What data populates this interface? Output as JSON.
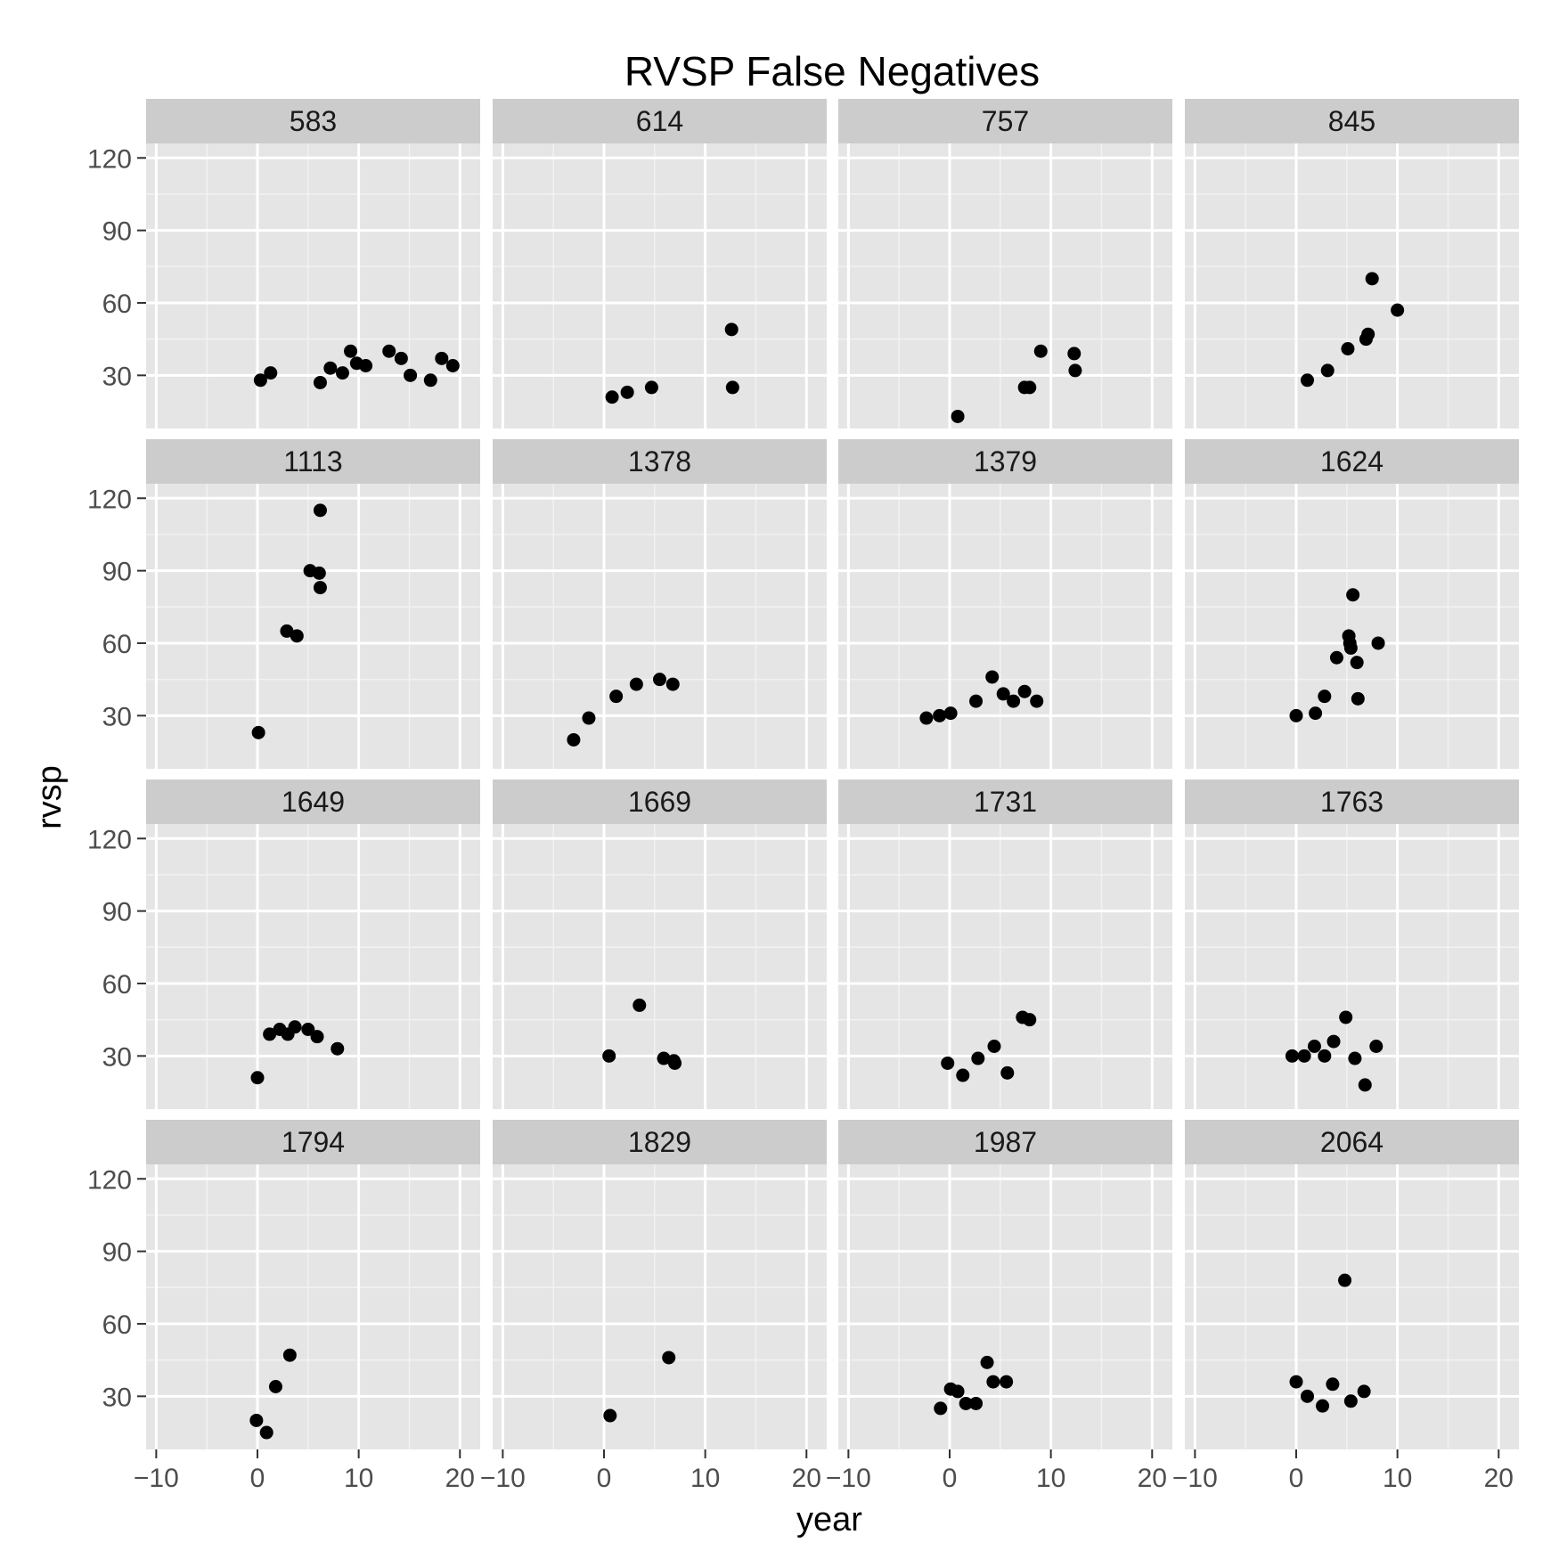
{
  "colors": {
    "panel_bg": "#e5e5e5",
    "strip_bg": "#cccccc",
    "grid_major": "#ffffff",
    "grid_minor": "#f2f2f2",
    "point": "#000000",
    "tick_label": "#4d4d4d",
    "text": "#000000"
  },
  "chart_data": {
    "type": "scatter",
    "title": "RVSP False Negatives",
    "xlabel": "year",
    "ylabel": "rvsp",
    "xlim": [
      -11,
      22
    ],
    "ylim": [
      8,
      126
    ],
    "xticks": [
      -10,
      0,
      10,
      20
    ],
    "xtick_labels": [
      "−10",
      "0",
      "10",
      "20"
    ],
    "yticks": [
      30,
      60,
      90,
      120
    ],
    "ytick_labels": [
      "30",
      "60",
      "90",
      "120"
    ],
    "grid": true,
    "legend": "none",
    "panels": [
      {
        "label": "583",
        "x": [
          0.3,
          1.3,
          6.2,
          7.2,
          8.4,
          9.2,
          9.8,
          10.7,
          13.0,
          14.2,
          15.1,
          17.1,
          18.2,
          19.3
        ],
        "y": [
          28,
          31,
          27,
          33,
          31,
          40,
          35,
          34,
          40,
          37,
          30,
          28,
          37,
          34
        ]
      },
      {
        "label": "614",
        "x": [
          0.8,
          2.3,
          4.7,
          12.6,
          12.7
        ],
        "y": [
          21,
          23,
          25,
          49,
          25
        ]
      },
      {
        "label": "757",
        "x": [
          0.8,
          7.4,
          7.9,
          9.0,
          12.3,
          12.4
        ],
        "y": [
          13,
          25,
          25,
          40,
          39,
          32
        ]
      },
      {
        "label": "845",
        "x": [
          1.1,
          3.1,
          5.1,
          6.9,
          7.1,
          7.5,
          10.0
        ],
        "y": [
          28,
          32,
          41,
          45,
          47,
          70,
          57
        ]
      },
      {
        "label": "1113",
        "x": [
          0.1,
          2.9,
          3.9,
          5.2,
          6.1,
          6.2,
          6.2
        ],
        "y": [
          23,
          65,
          63,
          90,
          89,
          83,
          115
        ]
      },
      {
        "label": "1378",
        "x": [
          -3.0,
          -1.5,
          1.2,
          3.2,
          5.5,
          6.8
        ],
        "y": [
          20,
          29,
          38,
          43,
          45,
          43
        ]
      },
      {
        "label": "1379",
        "x": [
          -2.3,
          -1.0,
          0.1,
          2.6,
          4.2,
          5.3,
          6.3,
          7.4,
          8.6
        ],
        "y": [
          29,
          30,
          31,
          36,
          46,
          39,
          36,
          40,
          36
        ]
      },
      {
        "label": "1624",
        "x": [
          0.0,
          1.9,
          2.8,
          4.0,
          5.2,
          5.3,
          5.4,
          5.6,
          6.0,
          6.1,
          8.1
        ],
        "y": [
          30,
          31,
          38,
          54,
          63,
          60,
          58,
          80,
          52,
          37,
          60
        ]
      },
      {
        "label": "1649",
        "x": [
          0.0,
          1.2,
          2.2,
          3.0,
          3.7,
          5.0,
          5.9,
          7.9
        ],
        "y": [
          21,
          39,
          41,
          39,
          42,
          41,
          38,
          33
        ]
      },
      {
        "label": "1669",
        "x": [
          0.5,
          3.5,
          5.9,
          6.9,
          7.0
        ],
        "y": [
          30,
          51,
          29,
          28,
          27
        ]
      },
      {
        "label": "1731",
        "x": [
          -0.2,
          1.3,
          2.8,
          4.4,
          5.7,
          7.2,
          7.9
        ],
        "y": [
          27,
          22,
          29,
          34,
          23,
          46,
          45
        ]
      },
      {
        "label": "1763",
        "x": [
          -0.4,
          0.8,
          1.8,
          2.8,
          3.7,
          4.9,
          5.8,
          6.8,
          7.9
        ],
        "y": [
          30,
          30,
          34,
          30,
          36,
          46,
          29,
          18,
          34
        ]
      },
      {
        "label": "1794",
        "x": [
          -0.1,
          0.9,
          1.8,
          3.2
        ],
        "y": [
          20,
          15,
          34,
          47
        ]
      },
      {
        "label": "1829",
        "x": [
          0.6,
          6.4
        ],
        "y": [
          22,
          46
        ]
      },
      {
        "label": "1987",
        "x": [
          -0.9,
          0.1,
          0.8,
          1.6,
          2.6,
          3.7,
          4.3,
          5.6
        ],
        "y": [
          25,
          33,
          32,
          27,
          27,
          44,
          36,
          36
        ]
      },
      {
        "label": "2064",
        "x": [
          0.0,
          1.1,
          2.6,
          3.6,
          4.8,
          5.4,
          6.7
        ],
        "y": [
          36,
          30,
          26,
          35,
          78,
          28,
          32
        ]
      }
    ]
  }
}
